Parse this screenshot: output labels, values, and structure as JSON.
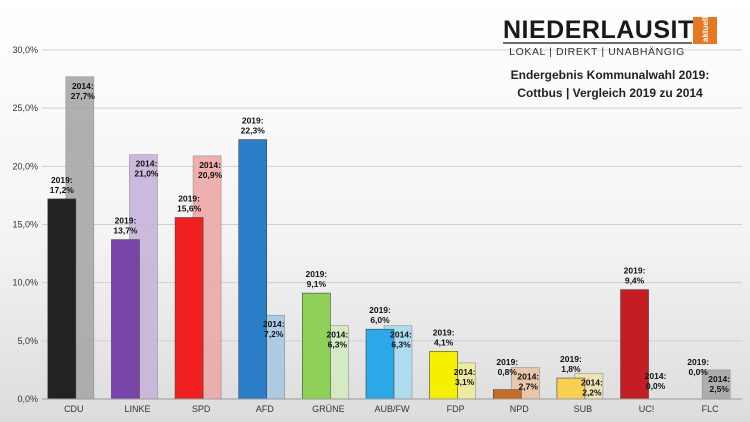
{
  "branding": {
    "name": "NIEDERLAUSITZ",
    "tag": "aktuell",
    "tagline": "LOKAL | DIREKT | UNABHÄNGIG",
    "accent_color": "#e87722"
  },
  "chart_data": {
    "type": "bar",
    "title": "Endergebnis Kommunalwahl 2019:",
    "subtitle": "Cottbus | Vergleich 2019 zu 2014",
    "categories": [
      "CDU",
      "LINKE",
      "SPD",
      "AFD",
      "GRÜNE",
      "AUB/FW",
      "FDP",
      "NPD",
      "SUB",
      "UC!",
      "FLC"
    ],
    "ylim": [
      0,
      30
    ],
    "yticks": [
      "0,0%",
      "5,0%",
      "10,0%",
      "15,0%",
      "20,0%",
      "25,0%",
      "30,0%"
    ],
    "grid": true,
    "series": [
      {
        "name": "2019",
        "values": [
          17.2,
          13.7,
          15.6,
          22.3,
          9.1,
          6.0,
          4.1,
          0.8,
          1.8,
          9.4,
          0.0
        ],
        "labels": [
          "2019:\n17,2%",
          "2019:\n13,7%",
          "2019:\n15,6%",
          "2019:\n22,3%",
          "2019:\n9,1%",
          "2019:\n6,0%",
          "2019:\n4,1%",
          "2019:\n0,8%",
          "2019:\n1,8%",
          "2019:\n9,4%",
          "2019:\n0,0%"
        ],
        "colors": [
          "#222222",
          "#7a45a8",
          "#f02020",
          "#2a7ec8",
          "#8ed058",
          "#2aa8e8",
          "#f6f000",
          "#c86a28",
          "#f8d050",
          "#c41e24",
          "#bbbbbb"
        ]
      },
      {
        "name": "2014",
        "values": [
          27.7,
          21.0,
          20.9,
          7.2,
          6.3,
          6.3,
          3.1,
          2.7,
          2.2,
          0.0,
          2.5
        ],
        "labels": [
          "2014:\n27,7%",
          "2014:\n21,0%",
          "2014:\n20,9%",
          "2014:\n7,2%",
          "2014:\n6,3%",
          "2014:\n6,3%",
          "2014:\n3,1%",
          "2014:\n2,7%",
          "2014:\n2,2%",
          "2014:\n0,0%",
          "2014:\n2,5%"
        ],
        "colors": [
          "#a8a8a8",
          "#c8b4dc",
          "#f0a8a8",
          "#a8c8e4",
          "#d4ecc0",
          "#a8dcf0",
          "#f0ec9c",
          "#e8c4a4",
          "#f0e4b0",
          "#e8b0b0",
          "#a8a8a8"
        ]
      }
    ]
  }
}
